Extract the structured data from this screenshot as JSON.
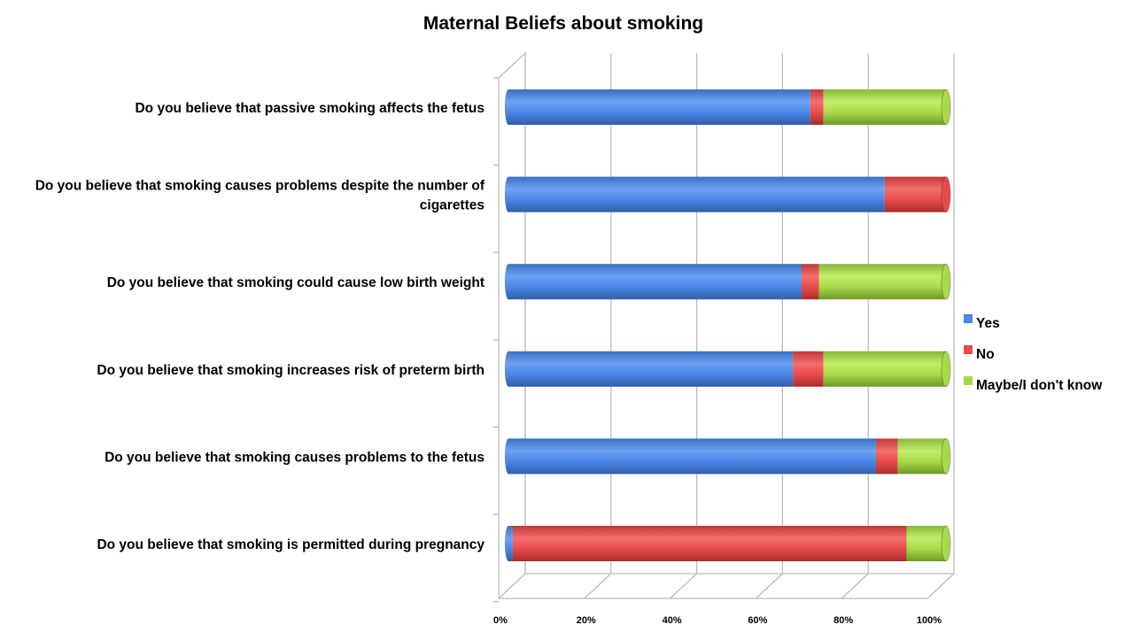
{
  "chart_data": {
    "type": "bar",
    "orientation": "horizontal",
    "stacked": "100%",
    "style": "3d-cylinder",
    "title": "Maternal Beliefs about smoking",
    "categories": [
      [
        "Do you believe that passive smoking affects the fetus"
      ],
      [
        "Do you believe that smoking causes problems despite the number of",
        "cigarettes"
      ],
      [
        "Do you believe that smoking could cause low birth weight"
      ],
      [
        "Do you believe that smoking increases risk of preterm birth"
      ],
      [
        "Do you believe that smoking causes problems to the fetus"
      ],
      [
        "Do you believe that smoking is permitted during pregnancy"
      ]
    ],
    "series": [
      {
        "name": "Yes",
        "color": "#4a86e8",
        "values": [
          69,
          86,
          67,
          65,
          84,
          1
        ]
      },
      {
        "name": "No",
        "color": "#e84b4b",
        "values": [
          3,
          14,
          4,
          7,
          5,
          90
        ]
      },
      {
        "name": "Maybe/I don't know",
        "color": "#a8d94a",
        "values": [
          28,
          0,
          29,
          28,
          11,
          9
        ]
      }
    ],
    "x_ticks": [
      "0%",
      "20%",
      "40%",
      "60%",
      "80%",
      "100%"
    ],
    "xlim": [
      0,
      100
    ],
    "grid": true,
    "legend_position": "right"
  }
}
